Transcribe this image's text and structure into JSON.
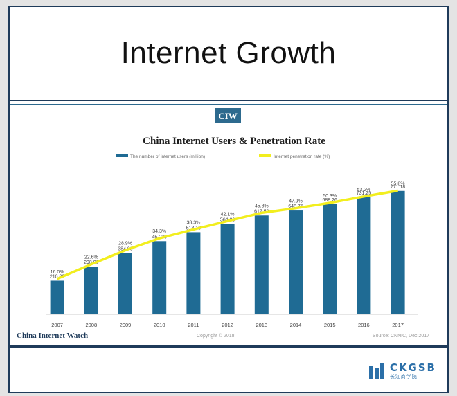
{
  "slide": {
    "title": "Internet Growth"
  },
  "chart_header": {
    "badge": "CIW",
    "chart_title": "China Internet Users & Penetration Rate"
  },
  "footer_text": {
    "brand": "China Internet Watch",
    "copyright": "Copyright © 2018",
    "source": "Source: CNNIC, Dec 2017"
  },
  "logo": {
    "text": "CKGSB",
    "subtext": "长江商学院"
  },
  "colors": {
    "bar": "#1f6b94",
    "line": "#f2ee1e",
    "frame": "#1f3b5a",
    "badge_bg": "#2d6a8e"
  },
  "chart_data": {
    "type": "bar",
    "title": "China Internet Users & Penetration Rate",
    "categories": [
      "2007",
      "2008",
      "2009",
      "2010",
      "2011",
      "2012",
      "2013",
      "2014",
      "2015",
      "2016",
      "2017"
    ],
    "series": [
      {
        "name": "The number of internet users (million)",
        "type": "bar",
        "values": [
          210.0,
          298.0,
          384.0,
          457.3,
          513.1,
          564.0,
          617.58,
          648.75,
          688.26,
          731.25,
          771.18
        ],
        "labels": [
          "210.00",
          "298.00",
          "384.00",
          "457.30",
          "513.10",
          "564.00",
          "617.58",
          "648.75",
          "688.26",
          "731.25",
          "771.18"
        ]
      },
      {
        "name": "Internet penetration rate (%)",
        "type": "line",
        "values": [
          16.0,
          22.6,
          28.9,
          34.3,
          38.3,
          42.1,
          45.8,
          47.9,
          50.3,
          53.2,
          55.8
        ],
        "labels": [
          "16.0%",
          "22.6%",
          "28.9%",
          "34.3%",
          "38.3%",
          "42.1%",
          "45.8%",
          "47.9%",
          "50.3%",
          "53.2%",
          "55.8%"
        ]
      }
    ],
    "xlabel": "",
    "ylabel": "",
    "ylim": [
      0,
      900
    ],
    "y2lim": [
      0,
      65
    ],
    "legend": "top-center",
    "grid": false
  }
}
